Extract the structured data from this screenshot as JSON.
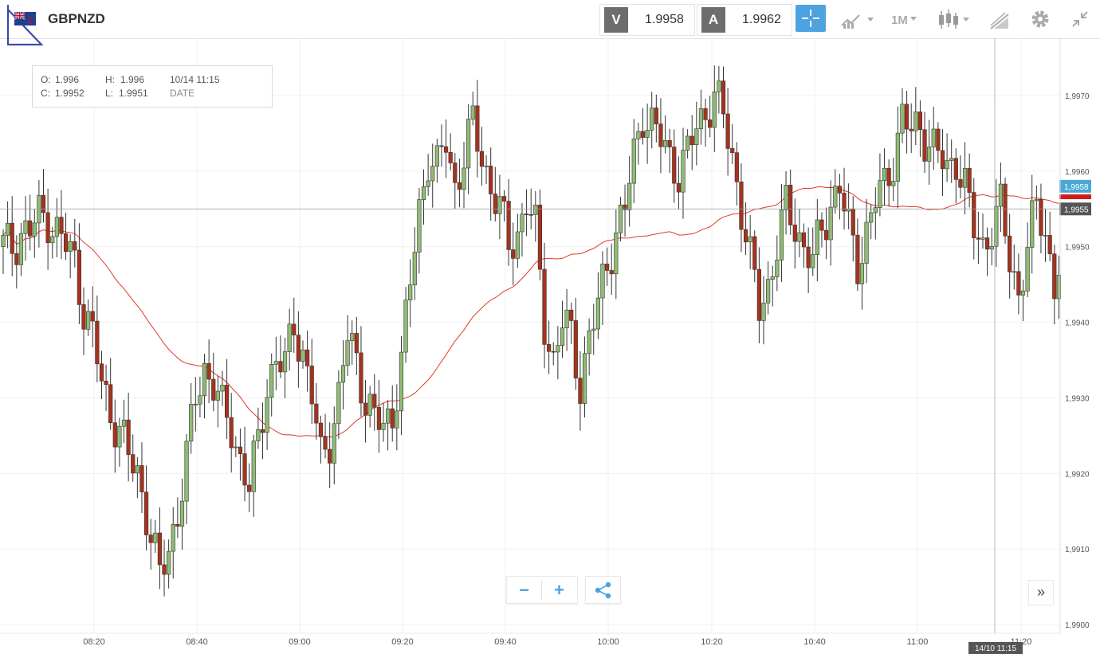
{
  "header": {
    "symbol": "GBPNZD",
    "sell_badge": "V",
    "sell_price": "1.9958",
    "buy_badge": "A",
    "buy_price": "1.9962",
    "timeframe": "1M",
    "icons": [
      "crosshair-icon",
      "chart-type-icon",
      "candlestick-icon",
      "draw-icon",
      "gear-icon",
      "collapse-icon"
    ]
  },
  "info_box": {
    "o_label": "O:",
    "o_value": "1.996",
    "h_label": "H:",
    "h_value": "1.996",
    "date_value": "10/14 11:15",
    "c_label": "C:",
    "c_value": "1.9952",
    "l_label": "L:",
    "l_value": "1.9951",
    "date_label": "DATE"
  },
  "chart_data": {
    "type": "candlestick",
    "instrument": "GBPNZD",
    "interval": "1M",
    "x_tick_labels": [
      "08:20",
      "08:40",
      "09:00",
      "09:20",
      "09:40",
      "10:00",
      "10:20",
      "10:40",
      "11:00",
      "11:20"
    ],
    "y_tick_labels": [
      "1,9900",
      "1,9910",
      "1,9920",
      "1,9930",
      "1,9940",
      "1,9950",
      "1,9960",
      "1,9970"
    ],
    "ylim": [
      1.9899,
      1.99775
    ],
    "price_tags": [
      {
        "label": "1,9958",
        "value": 1.9958,
        "color": "#4aa8d8"
      },
      {
        "label": "1,9955",
        "value": 1.9955,
        "color": "#555555"
      }
    ],
    "hover_time_label": "14/10 11:15",
    "horizontal_line": 1.9955,
    "candle_up_color": "#8fbc73",
    "candle_down_color": "#a8321c",
    "moving_average_color": "#e03a2a",
    "grid": true
  },
  "controls": {
    "zoom_out": "−",
    "zoom_in": "+",
    "forward": "»"
  }
}
